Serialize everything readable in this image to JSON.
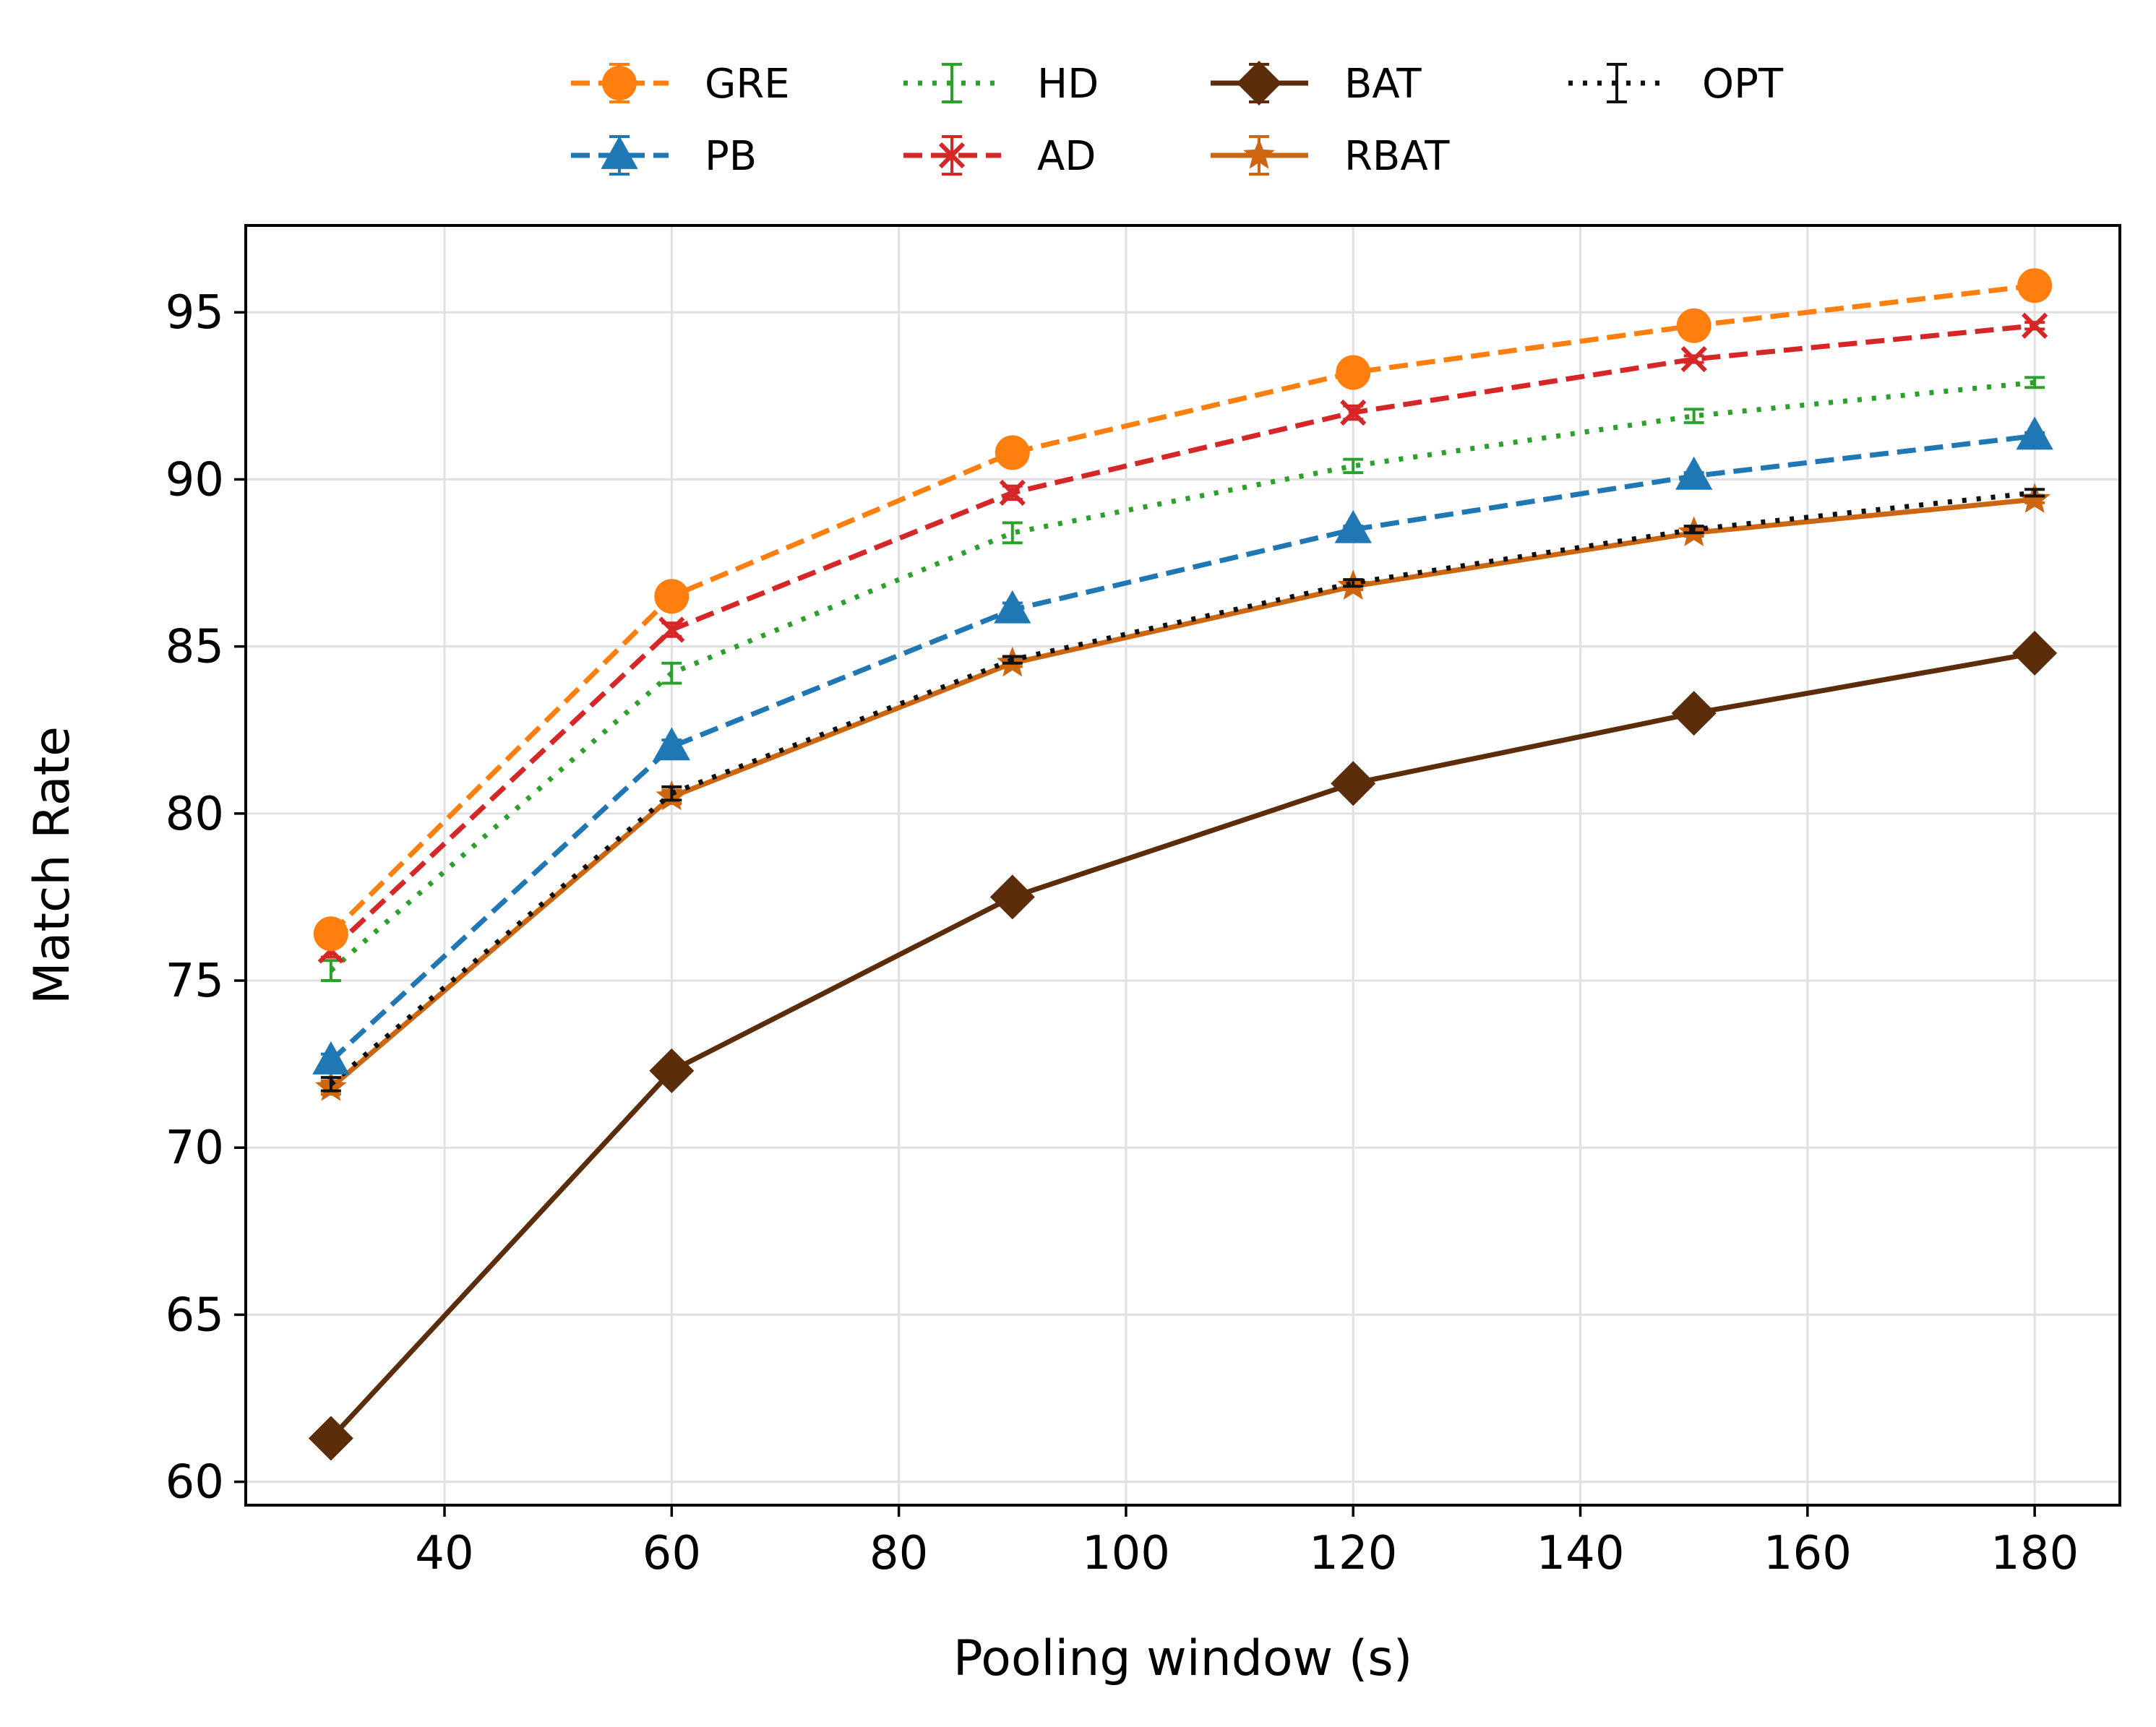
{
  "chart_data": {
    "type": "line",
    "title": "",
    "xlabel": "Pooling window (s)",
    "ylabel": "Match Rate",
    "x": [
      30,
      60,
      90,
      120,
      150,
      180
    ],
    "xlim": [
      22.5,
      187.5
    ],
    "ylim": [
      59.3,
      97.6
    ],
    "xticks": [
      40,
      60,
      80,
      100,
      120,
      140,
      160,
      180
    ],
    "yticks": [
      60,
      65,
      70,
      75,
      80,
      85,
      90,
      95
    ],
    "grid": true,
    "legend_position": "top-center (above plot, 4 columns)",
    "series": [
      {
        "name": "GRE",
        "color": "#ff7f0e",
        "linestyle": "dashed",
        "marker": "circle",
        "values": [
          76.4,
          86.5,
          90.8,
          93.2,
          94.6,
          95.8
        ],
        "errors": [
          0.2,
          0.2,
          0.2,
          0.1,
          0.1,
          0.1
        ]
      },
      {
        "name": "PB",
        "color": "#1f77b4",
        "linestyle": "dashed",
        "marker": "triangle",
        "values": [
          72.6,
          82.0,
          86.1,
          88.5,
          90.1,
          91.3
        ],
        "errors": [
          0.2,
          0.2,
          0.2,
          0.1,
          0.1,
          0.1
        ]
      },
      {
        "name": "HD",
        "color": "#2ca02c",
        "linestyle": "dotted",
        "marker": "none",
        "values": [
          75.3,
          84.2,
          88.4,
          90.4,
          91.9,
          92.9
        ],
        "errors": [
          0.3,
          0.3,
          0.3,
          0.2,
          0.2,
          0.15
        ]
      },
      {
        "name": "AD",
        "color": "#d62728",
        "linestyle": "dashed",
        "marker": "x",
        "values": [
          75.9,
          85.5,
          89.6,
          92.0,
          93.6,
          94.6
        ],
        "errors": [
          0.2,
          0.2,
          0.2,
          0.2,
          0.1,
          0.1
        ]
      },
      {
        "name": "BAT",
        "color": "#5c2d0a",
        "linestyle": "solid",
        "marker": "diamond",
        "values": [
          61.3,
          72.3,
          77.5,
          80.9,
          83.0,
          84.8
        ],
        "errors": [
          0.1,
          0.1,
          0.1,
          0.1,
          0.1,
          0.1
        ]
      },
      {
        "name": "RBAT",
        "color": "#cc6611",
        "linestyle": "solid",
        "marker": "star",
        "values": [
          71.8,
          80.5,
          84.5,
          86.8,
          88.4,
          89.4
        ],
        "errors": [
          0.2,
          0.2,
          0.1,
          0.1,
          0.1,
          0.1
        ]
      },
      {
        "name": "OPT",
        "color": "#111111",
        "linestyle": "dotted",
        "marker": "none",
        "values": [
          71.9,
          80.6,
          84.6,
          86.9,
          88.5,
          89.6
        ],
        "errors": [
          0.2,
          0.2,
          0.1,
          0.1,
          0.1,
          0.1
        ]
      }
    ]
  }
}
